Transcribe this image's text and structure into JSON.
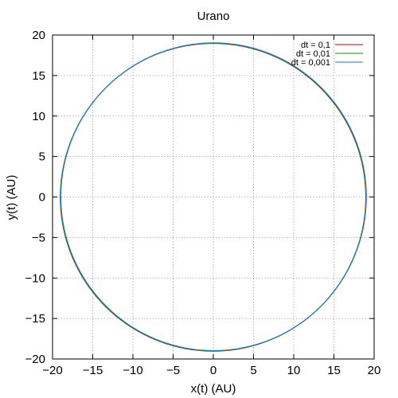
{
  "chart_data": {
    "type": "line",
    "title": "Urano",
    "xlabel": "x(t) (AU)",
    "ylabel": "y(t) (AU)",
    "xlim": [
      -20,
      20
    ],
    "ylim": [
      -20,
      20
    ],
    "xticks": [
      -20,
      -15,
      -10,
      -5,
      0,
      5,
      10,
      15,
      20
    ],
    "yticks": [
      -20,
      -15,
      -10,
      -5,
      0,
      5,
      10,
      15,
      20
    ],
    "grid": true,
    "legend_position": "top-right",
    "series": [
      {
        "name": "dt = 0,1",
        "color": "#cc0000",
        "x": [
          19.0,
          18.07,
          15.37,
          11.17,
          5.87,
          0.0,
          -5.87,
          -11.17,
          -15.37,
          -18.07,
          -19.0,
          -18.07,
          -15.37,
          -11.17,
          -5.87,
          0.0,
          5.87,
          11.17,
          15.37,
          18.07,
          19.0
        ],
        "y": [
          0.0,
          5.87,
          11.17,
          15.37,
          18.07,
          19.0,
          18.07,
          15.37,
          11.17,
          5.87,
          0.0,
          -5.87,
          -11.17,
          -15.37,
          -18.07,
          -19.0,
          -18.07,
          -15.37,
          -11.17,
          -5.87,
          0.0
        ]
      },
      {
        "name": "dt = 0,01",
        "color": "#009900",
        "x": [
          19.0,
          18.07,
          15.37,
          11.17,
          5.87,
          0.0,
          -5.87,
          -11.17,
          -15.37,
          -18.07,
          -19.0,
          -18.07,
          -15.37,
          -11.17,
          -5.87,
          0.0,
          5.87,
          11.17,
          15.37,
          18.07,
          19.0
        ],
        "y": [
          0.0,
          5.87,
          11.17,
          15.37,
          18.07,
          19.0,
          18.07,
          15.37,
          11.17,
          5.87,
          0.0,
          -5.87,
          -11.17,
          -15.37,
          -18.07,
          -19.0,
          -18.07,
          -15.37,
          -11.17,
          -5.87,
          0.0
        ]
      },
      {
        "name": "dt = 0,001",
        "color": "#1f77d0",
        "x": [
          19.0,
          18.07,
          15.37,
          11.17,
          5.87,
          0.0,
          -5.87,
          -11.17,
          -15.37,
          -18.07,
          -19.0,
          -18.07,
          -15.37,
          -11.17,
          -5.87,
          0.0,
          5.87,
          11.17,
          15.37,
          18.07,
          19.0
        ],
        "y": [
          0.0,
          5.87,
          11.17,
          15.37,
          18.07,
          19.0,
          18.07,
          15.37,
          11.17,
          5.87,
          0.0,
          -5.87,
          -11.17,
          -15.37,
          -18.07,
          -19.0,
          -18.07,
          -15.37,
          -11.17,
          -5.87,
          0.0
        ]
      }
    ]
  }
}
